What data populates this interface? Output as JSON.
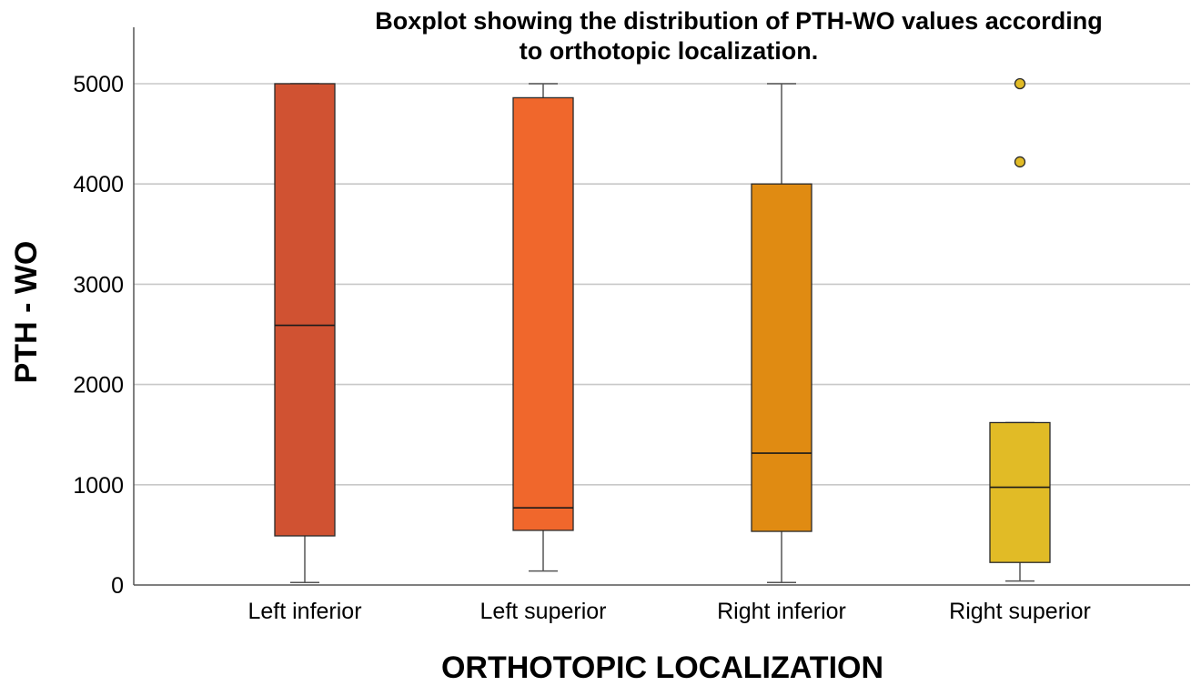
{
  "chart_data": {
    "type": "boxplot",
    "title_lines": [
      "Boxplot showing the distribution of PTH-WO values according",
      "to orthotopic localization."
    ],
    "xlabel": "ORTHOTOPIC LOCALIZATION",
    "ylabel": "PTH - WO",
    "ylim": [
      0,
      5500
    ],
    "yticks": [
      0,
      1000,
      2000,
      3000,
      4000,
      5000
    ],
    "ytick_labels": [
      "0",
      "1000",
      "2000",
      "3000",
      "4000",
      "5000"
    ],
    "grid": "horizontal",
    "categories": [
      "Left inferior",
      "Left superior",
      "Right inferior",
      "Right superior"
    ],
    "boxes": [
      {
        "category": "Left inferior",
        "whisker_low": 25,
        "q1": 490,
        "median": 2590,
        "q3": 5000,
        "whisker_high": 5000,
        "outliers": [],
        "color": "#D05232"
      },
      {
        "category": "Left superior",
        "whisker_low": 140,
        "q1": 545,
        "median": 770,
        "q3": 4860,
        "whisker_high": 5000,
        "outliers": [],
        "color": "#F0672C"
      },
      {
        "category": "Right inferior",
        "whisker_low": 25,
        "q1": 535,
        "median": 1315,
        "q3": 4000,
        "whisker_high": 5000,
        "outliers": [],
        "color": "#E08B12"
      },
      {
        "category": "Right superior",
        "whisker_low": 40,
        "q1": 225,
        "median": 975,
        "q3": 1620,
        "whisker_high": 1620,
        "outliers": [
          5000,
          4220
        ],
        "color": "#E1BB26"
      }
    ]
  }
}
